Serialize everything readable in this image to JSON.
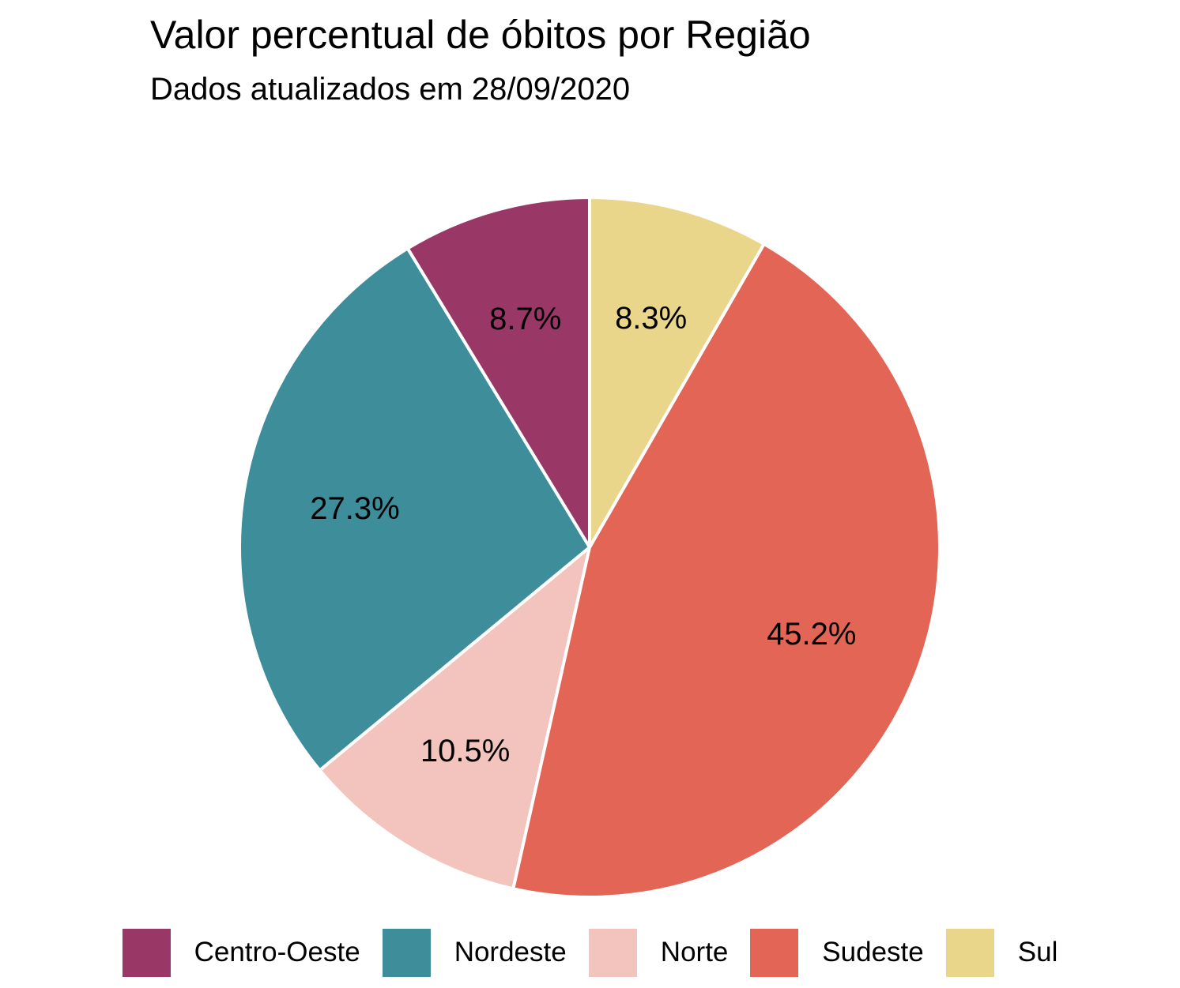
{
  "chart_data": {
    "type": "pie",
    "title": "Valor percentual de óbitos por Região",
    "subtitle": "Dados atualizados em 28/09/2020",
    "slices": [
      {
        "label": "Centro-Oeste",
        "value": 8.7,
        "value_label": "8.7%",
        "color": "#993766"
      },
      {
        "label": "Nordeste",
        "value": 27.3,
        "value_label": "27.3%",
        "color": "#3D8D9A"
      },
      {
        "label": "Norte",
        "value": 10.5,
        "value_label": "10.5%",
        "color": "#F3C4BD"
      },
      {
        "label": "Sudeste",
        "value": 45.2,
        "value_label": "45.2%",
        "color": "#E26555"
      },
      {
        "label": "Sul",
        "value": 8.3,
        "value_label": "8.3%",
        "color": "#E9D68B"
      }
    ],
    "legend_position": "bottom",
    "start_angle": "12 o'clock",
    "direction": "counter-clockwise from Centro-Oeste, clockwise from Sul",
    "slice_border_color": "#FFFFFF"
  }
}
